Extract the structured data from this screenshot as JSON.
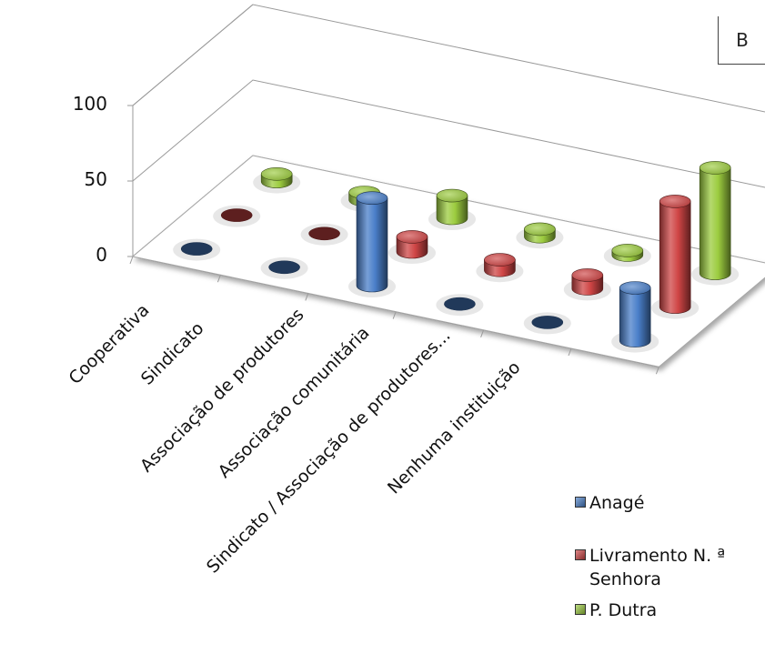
{
  "panel_label": "B",
  "chart_data": {
    "type": "bar",
    "variant": "3d-cylinder",
    "title": "",
    "xlabel": "",
    "ylabel": "",
    "ylim": [
      0,
      100
    ],
    "yticks": [
      "0",
      "50",
      "100"
    ],
    "categories": [
      "Cooperativa",
      "Sindicato",
      "Associação de produtores",
      "Associação comunitária",
      "Sindicato /  Associação de produtores...",
      "Nenhuma  instituição"
    ],
    "series": [
      {
        "name": "Anagé",
        "color": "#4a7fc9",
        "values": [
          0,
          0,
          58,
          0,
          0,
          35
        ]
      },
      {
        "name": "Livramento N. ª Senhora",
        "color": "#cf4545",
        "values": [
          0,
          0,
          10,
          7,
          9,
          70
        ]
      },
      {
        "name": "P. Dutra",
        "color": "#9ccc3f",
        "values": [
          5,
          5,
          15,
          5,
          3,
          70
        ]
      }
    ],
    "grid": true,
    "legend_position": "bottom-right"
  }
}
